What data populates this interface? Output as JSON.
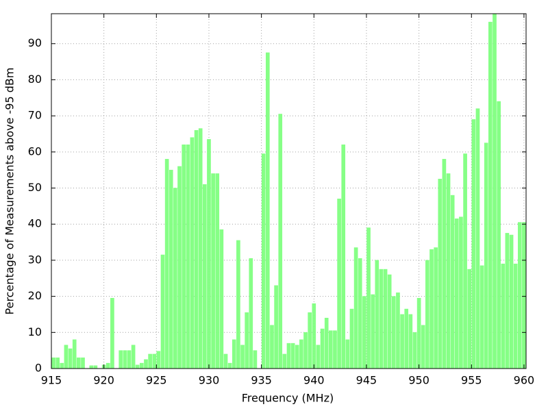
{
  "chart_data": {
    "type": "histogram",
    "xlabel": "Frequency (MHz)",
    "ylabel": "Percentage of Measurements above -95 dBm",
    "color": "#80ff80",
    "bins": [
      915,
      915.4,
      915.8,
      916.2,
      916.6,
      917,
      917.4,
      917.8,
      918.2,
      918.6,
      919,
      919.4,
      919.8,
      920.2,
      920.6,
      921,
      921.4,
      921.8,
      922.2,
      922.6,
      923,
      923.4,
      923.8,
      924.2,
      924.6,
      925,
      925.4,
      925.8,
      926.2,
      926.6,
      927,
      927.4,
      927.8,
      928.2,
      928.6,
      929,
      929.4,
      929.8,
      930.2,
      930.6,
      931,
      931.4,
      931.8,
      932.2,
      932.6,
      933,
      933.4,
      933.8,
      934.2,
      934.6,
      935,
      935.4,
      935.8,
      936.2,
      936.6,
      937,
      937.4,
      937.8,
      938.2,
      938.6,
      939,
      939.4,
      939.8,
      940.2,
      940.6,
      941,
      941.4,
      941.8,
      942.2,
      942.6,
      943,
      943.4,
      943.8,
      944.2,
      944.6,
      945,
      945.4,
      945.8,
      946.2,
      946.6,
      947,
      947.4,
      947.8,
      948.2,
      948.6,
      949,
      949.4,
      949.8,
      950.2,
      950.6,
      951,
      951.4,
      951.8,
      952.2,
      952.6,
      953,
      953.4,
      953.8,
      954.2,
      954.6,
      955,
      955.4,
      955.8,
      956.2,
      956.6,
      957,
      957.4,
      957.8,
      958.2,
      958.6,
      959,
      959.4,
      959.8,
      960.2
    ],
    "values": [
      3,
      3,
      1.5,
      6.5,
      5.5,
      8,
      3,
      3,
      0,
      0.8,
      0.8,
      0,
      1,
      1.5,
      19.5,
      0,
      5,
      5,
      5,
      6.5,
      1,
      1.5,
      2.5,
      4,
      4,
      4.8,
      31.5,
      58,
      55,
      50,
      56,
      62,
      62,
      64,
      66,
      66.5,
      51,
      63.5,
      54,
      54,
      38.5,
      4,
      1.5,
      8,
      35.5,
      6.5,
      15.5,
      30.5,
      5,
      0,
      59.5,
      87.5,
      12,
      23,
      70.5,
      4,
      7,
      7,
      6.5,
      8,
      10,
      15.5,
      18,
      6.5,
      11,
      14,
      10.5,
      10.5,
      47,
      62,
      8,
      16.5,
      33.5,
      30.5,
      20,
      39,
      20.5,
      30,
      27.5,
      27.5,
      26,
      20,
      21,
      15,
      16.5,
      15,
      10,
      19.5,
      12,
      30,
      33,
      33.5,
      52.5,
      58,
      54,
      48,
      41.5,
      42,
      59.5,
      27.5,
      69,
      72,
      28.5,
      62.5,
      96,
      99,
      74,
      29,
      37.5,
      37,
      29,
      40.5,
      40.5
    ],
    "xlim": [
      915,
      960.2
    ],
    "ylim": [
      0,
      98.3
    ],
    "xticks": [
      915,
      920,
      925,
      930,
      935,
      940,
      945,
      950,
      955,
      960
    ],
    "yticks": [
      0,
      10,
      20,
      30,
      40,
      50,
      60,
      70,
      80,
      90
    ],
    "grid": true
  }
}
